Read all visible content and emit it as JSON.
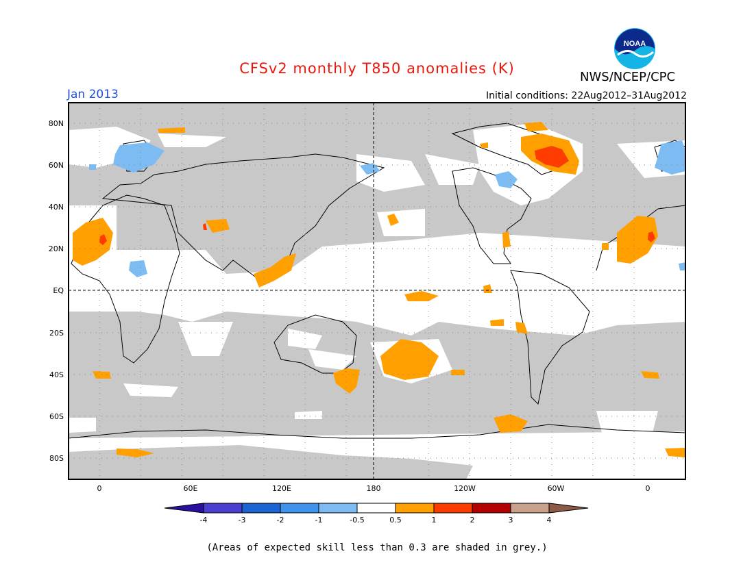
{
  "header": {
    "title": "CFSv2 monthly T850 anomalies (K)",
    "title_color": "#e8180c",
    "valid_month": "Jan 2013",
    "valid_color": "#1f4fd6",
    "initial_conditions": "Initial conditions: 22Aug2012–31Aug2012",
    "agency": "NWS/NCEP/CPC",
    "logo_text": "NOAA"
  },
  "axes": {
    "lat_labels": [
      "80N",
      "60N",
      "40N",
      "20N",
      "EQ",
      "20S",
      "40S",
      "60S",
      "80S"
    ],
    "lon_labels": [
      "0",
      "60E",
      "120E",
      "180",
      "120W",
      "60W",
      "0"
    ]
  },
  "legend": {
    "colors": [
      "#2a0fa0",
      "#4b3fd0",
      "#1a63d0",
      "#3f93ea",
      "#7cbcf2",
      "#ffffff",
      "#ffa000",
      "#ff3c00",
      "#b40000",
      "#c8a08c",
      "#8c5a46"
    ],
    "labels": [
      "-4",
      "-3",
      "-2",
      "-1",
      "-0.5",
      "0.5",
      "1",
      "2",
      "3",
      "4"
    ]
  },
  "colors": {
    "low_skill_grey": "#c8c8c8",
    "warm_05_1": "#ffa000",
    "warm_1_2": "#ff3c00",
    "cool_05_1": "#7cbcf2"
  },
  "footnote": "(Areas of expected skill less than 0.3 are shaded in grey.)"
}
